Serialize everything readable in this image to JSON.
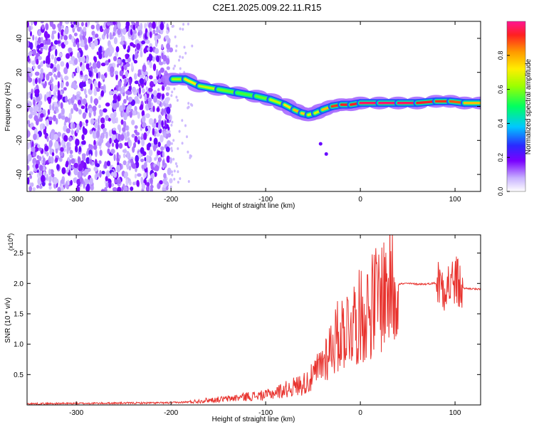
{
  "title": "C2E1.2025.009.22.11.R15",
  "chart_data": [
    {
      "type": "heatmap",
      "xlabel": "Height of straight line (km)",
      "ylabel": "Frequency (Hz)",
      "xlim": [
        -352,
        127
      ],
      "ylim": [
        -50,
        50
      ],
      "xticks": [
        -300,
        -200,
        -100,
        0,
        100
      ],
      "yticks": [
        -40,
        -20,
        0,
        20,
        40
      ],
      "colorbar": {
        "label": "Normalized spectral amplitude",
        "range": [
          0,
          1
        ],
        "ticks": [
          0.0,
          0.2,
          0.4,
          0.6,
          0.8
        ]
      },
      "noise_region_x": [
        -352,
        -200
      ],
      "doppler_ridge": {
        "x": [
          -198,
          -185,
          -170,
          -150,
          -130,
          -110,
          -95,
          -80,
          -70,
          -62,
          -55,
          -48,
          -40,
          -30,
          -20,
          -10,
          0,
          20,
          40,
          60,
          80,
          95,
          110,
          127
        ],
        "y": [
          16,
          16,
          12,
          10,
          8,
          6,
          4,
          1,
          -2,
          -4,
          -5,
          -4,
          -2,
          0,
          1,
          1,
          2,
          2,
          2,
          2,
          3,
          3,
          2,
          2
        ],
        "amplitude": [
          0.5,
          0.75,
          0.7,
          0.6,
          0.55,
          0.55,
          0.6,
          0.7,
          0.75,
          0.8,
          0.7,
          0.65,
          0.7,
          0.85,
          0.95,
          0.9,
          0.95,
          0.98,
          0.97,
          0.96,
          0.9,
          0.9,
          0.85,
          0.7
        ]
      },
      "isolated_points": [
        {
          "x": -42,
          "y": -22
        },
        {
          "x": -36,
          "y": -28
        }
      ]
    },
    {
      "type": "line",
      "xlabel": "Height of straight line (km)",
      "ylabel": "SNR (10 * v/v)",
      "yscale_label": "(x10",
      "yscale_exp": "4",
      "xlim": [
        -352,
        127
      ],
      "ylim": [
        0,
        28000
      ],
      "xticks": [
        -300,
        -200,
        -100,
        0,
        100
      ],
      "yticks": [
        5000,
        10000,
        15000,
        20000,
        25000
      ],
      "ytick_labels": [
        "0.5",
        "1.0",
        "1.5",
        "2.0",
        "2.5"
      ],
      "color": "#e8322d",
      "series": [
        {
          "x": [
            -352,
            -300,
            -250,
            -200,
            -180,
            -160,
            -140,
            -120,
            -100,
            -80,
            -60,
            -50,
            -40,
            -30,
            -20,
            -10,
            0,
            10,
            20,
            30,
            40,
            50,
            60,
            70,
            80,
            90,
            95,
            100,
            105,
            110,
            120,
            127
          ],
          "values": [
            200,
            250,
            300,
            350,
            500,
            800,
            1000,
            1400,
            1600,
            2500,
            3500,
            4500,
            7000,
            10000,
            12000,
            13500,
            14500,
            16000,
            18000,
            19500,
            19900,
            20000,
            19900,
            19900,
            20100,
            20000,
            19800,
            20500,
            19500,
            19200,
            19100,
            19000
          ]
        }
      ]
    }
  ],
  "colors": {
    "line": "#e8322d",
    "axis": "#000000",
    "background": "#ffffff"
  }
}
